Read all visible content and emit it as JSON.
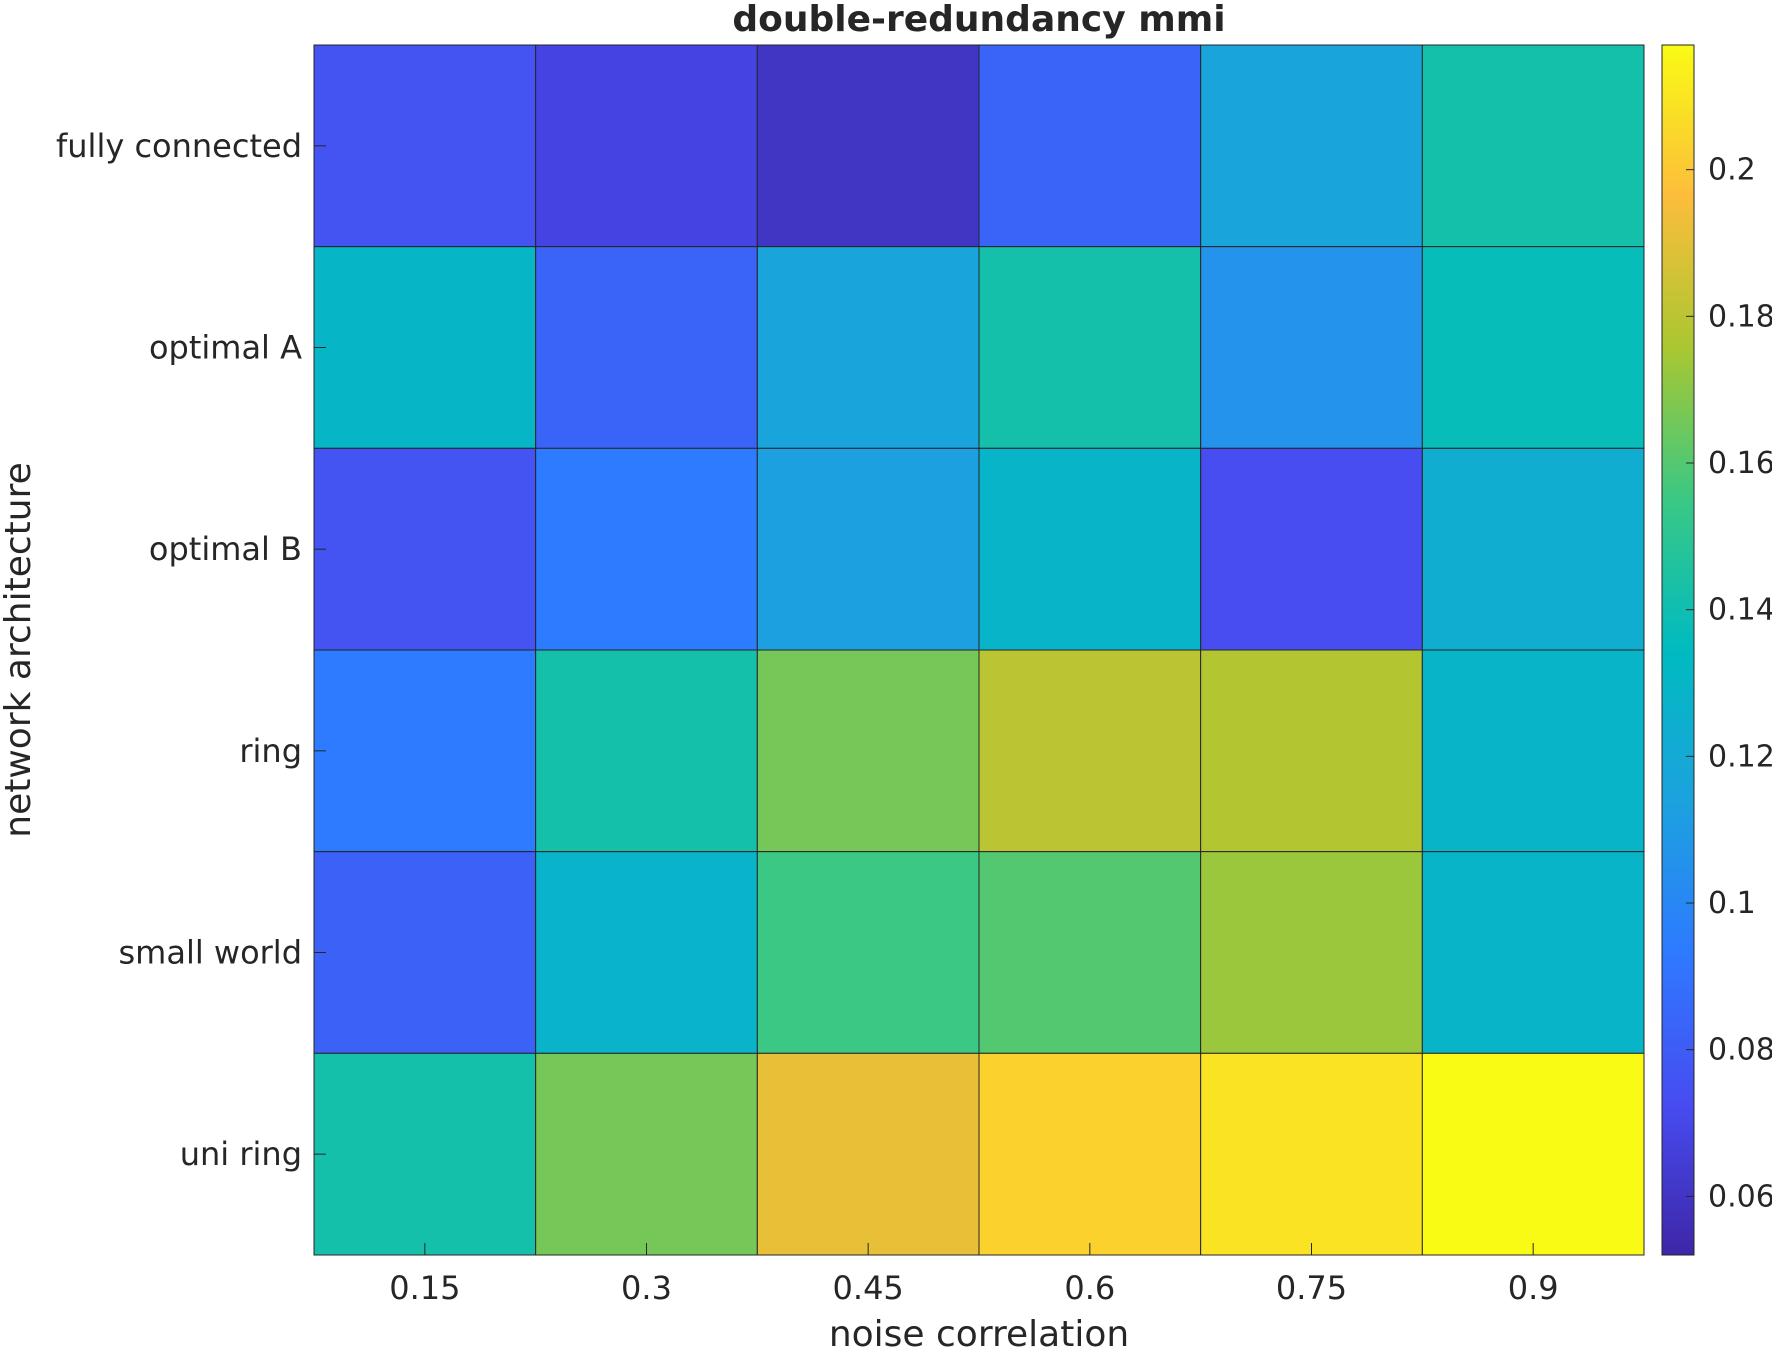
{
  "chart_data": {
    "type": "heatmap",
    "title": "double-redundancy mmi",
    "xlabel": "noise correlation",
    "ylabel": "network architecture",
    "x_categories": [
      "0.15",
      "0.3",
      "0.45",
      "0.6",
      "0.75",
      "0.9"
    ],
    "y_categories": [
      "fully connected",
      "optimal A",
      "optimal B",
      "ring",
      "small world",
      "uni ring"
    ],
    "values": [
      [
        0.076,
        0.068,
        0.06,
        0.083,
        0.116,
        0.142
      ],
      [
        0.13,
        0.083,
        0.116,
        0.142,
        0.106,
        0.137
      ],
      [
        0.076,
        0.094,
        0.113,
        0.129,
        0.073,
        0.123
      ],
      [
        0.094,
        0.142,
        0.166,
        0.18,
        0.178,
        0.129
      ],
      [
        0.082,
        0.128,
        0.155,
        0.16,
        0.173,
        0.129
      ],
      [
        0.142,
        0.166,
        0.191,
        0.203,
        0.209,
        0.217
      ]
    ],
    "colorbar": {
      "range": [
        0.052,
        0.217
      ],
      "ticks": [
        "0.06",
        "0.08",
        "0.1",
        "0.12",
        "0.14",
        "0.16",
        "0.18",
        "0.2"
      ],
      "colormap": "parula"
    },
    "grid": false,
    "legend": "none"
  }
}
